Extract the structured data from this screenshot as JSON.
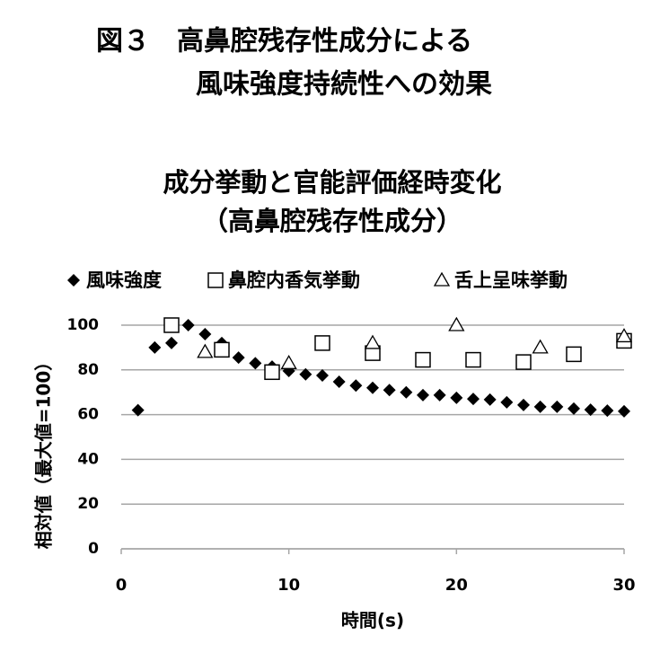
{
  "chart_data": {
    "type": "scatter",
    "title": [
      "図３　高鼻腔残存性成分による",
      "風味強度持続性への効果"
    ],
    "subtitle": [
      "成分挙動と官能評価経時変化",
      "（高鼻腔残存性成分）"
    ],
    "x_label": "時間(s)",
    "y_label": "相対値（最大値=100）",
    "xlim": [
      0,
      30
    ],
    "xticks": [
      0,
      10,
      20,
      30
    ],
    "ylim": [
      0,
      100
    ],
    "yticks": [
      0,
      20,
      40,
      60,
      80,
      100
    ],
    "grid": true,
    "legend": "top",
    "series": [
      {
        "name": "風味強度",
        "color": "#000000",
        "marker": "diamond",
        "x": [
          1,
          2,
          3,
          4,
          5,
          6,
          7,
          8,
          9,
          10,
          11,
          12,
          13,
          14,
          15,
          16,
          17,
          18,
          19,
          20,
          21,
          22,
          23,
          24,
          25,
          26,
          27,
          28,
          29,
          30
        ],
        "values": [
          62,
          90,
          92,
          100,
          96,
          92,
          85.5,
          83,
          81.5,
          79.5,
          78,
          77.5,
          74.7,
          73,
          72,
          71,
          70,
          68.7,
          68.7,
          67.5,
          67,
          66.7,
          65.5,
          64.3,
          63.5,
          63.5,
          62.7,
          62.2,
          61.8,
          61.5
        ]
      },
      {
        "name": "鼻腔内香気挙動",
        "color": "#000000",
        "marker": "square",
        "x": [
          3,
          6,
          9,
          12,
          15,
          18,
          21,
          24,
          27,
          30
        ],
        "values": [
          100,
          89,
          79,
          92,
          87.5,
          84.5,
          84.5,
          83.5,
          87,
          93
        ]
      },
      {
        "name": "舌上呈味挙動",
        "color": "#000000",
        "marker": "triangle",
        "x": [
          5,
          10,
          15,
          20,
          25,
          30
        ],
        "values": [
          88,
          83,
          92,
          100,
          90,
          95
        ]
      }
    ]
  }
}
